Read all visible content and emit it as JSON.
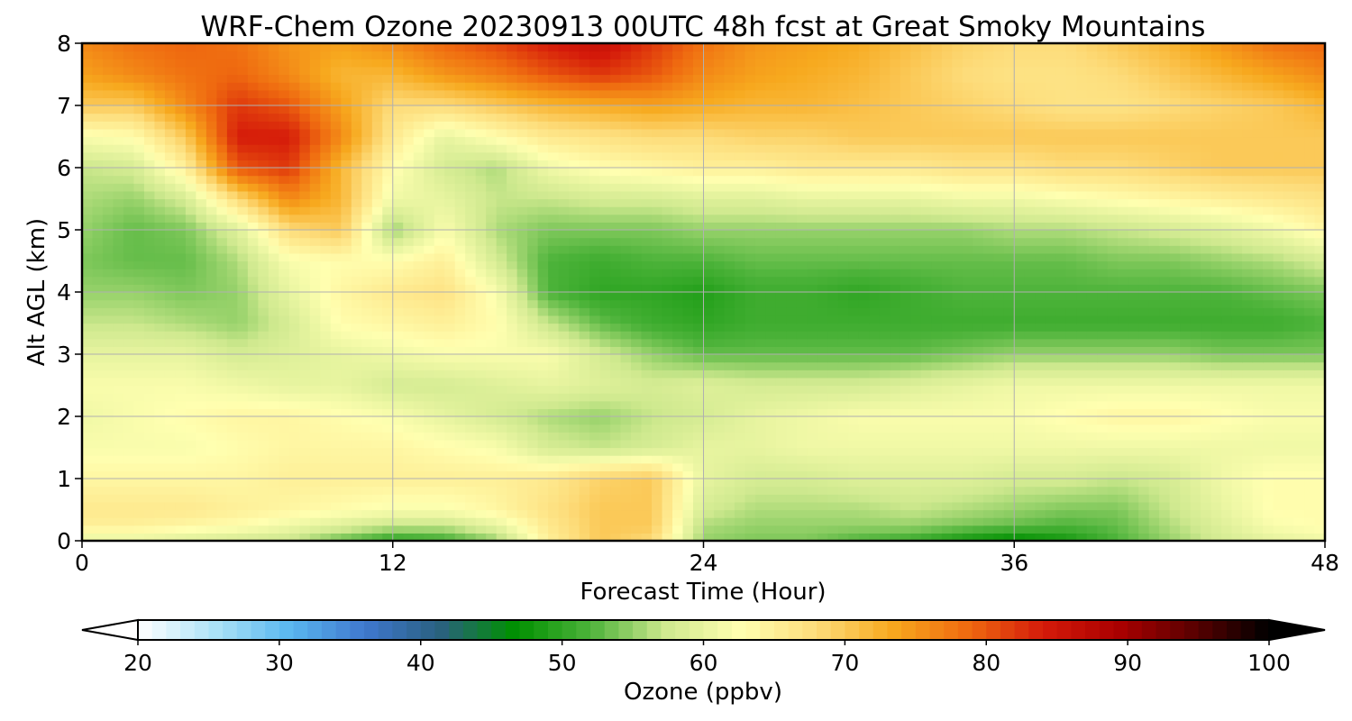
{
  "chart_data": {
    "type": "heatmap",
    "title": "WRF-Chem Ozone  20230913 00UTC 48h fcst at Great Smoky Mountains",
    "xlabel": "Forecast Time (Hour)",
    "ylabel": "Alt AGL (km)",
    "x_range": [
      0,
      48
    ],
    "y_range": [
      0,
      8
    ],
    "x_ticks": [
      0,
      12,
      24,
      36,
      48
    ],
    "y_ticks": [
      0,
      1,
      2,
      3,
      4,
      5,
      6,
      7,
      8
    ],
    "grid": true,
    "colorbar": {
      "label": "Ozone  (ppbv)",
      "range": [
        20,
        100
      ],
      "ticks": [
        20,
        30,
        40,
        50,
        60,
        70,
        80,
        90,
        100
      ],
      "extend": "both",
      "colors": [
        "#ffffff",
        "#aee3f7",
        "#5ab8f0",
        "#3f78cf",
        "#2a6080",
        "#009000",
        "#4db33a",
        "#cfe98f",
        "#ffffb0",
        "#fddc7a",
        "#f7a91e",
        "#ef6a10",
        "#d51a0a",
        "#aa0000",
        "#5a0000",
        "#000000"
      ]
    },
    "x": [
      0,
      2,
      4,
      6,
      8,
      10,
      12,
      14,
      16,
      18,
      20,
      22,
      24,
      26,
      28,
      30,
      32,
      34,
      36,
      38,
      40,
      42,
      44,
      46,
      48
    ],
    "y": [
      0,
      0.25,
      0.5,
      1,
      1.5,
      2,
      2.5,
      3,
      3.5,
      4,
      4.5,
      5,
      5.5,
      6,
      6.5,
      7,
      7.5,
      8
    ],
    "z": [
      [
        60,
        60,
        59,
        58,
        57,
        53,
        50,
        51,
        55,
        65,
        70,
        68,
        55,
        54,
        54,
        52,
        51,
        48,
        46,
        48,
        52,
        55,
        58,
        60,
        61
      ],
      [
        65,
        65,
        64,
        63,
        61,
        59,
        57,
        57,
        60,
        66,
        70,
        70,
        56,
        55,
        55,
        55,
        55,
        54,
        53,
        52,
        53,
        56,
        59,
        62,
        63
      ],
      [
        66,
        66,
        66,
        65,
        64,
        63,
        62,
        62,
        64,
        67,
        70,
        70,
        58,
        56,
        56,
        56,
        57,
        56,
        55,
        54,
        54,
        57,
        60,
        63,
        63
      ],
      [
        64,
        64,
        64,
        64,
        65,
        65,
        65,
        65,
        65,
        66,
        69,
        70,
        60,
        58,
        58,
        59,
        59,
        59,
        58,
        58,
        57,
        58,
        61,
        63,
        63
      ],
      [
        62,
        62,
        62,
        63,
        64,
        64,
        64,
        63,
        62,
        58,
        57,
        58,
        60,
        60,
        61,
        61,
        61,
        61,
        61,
        61,
        61,
        61,
        61,
        61,
        61
      ],
      [
        61,
        62,
        63,
        64,
        64,
        63,
        62,
        60,
        58,
        56,
        55,
        57,
        58,
        60,
        61,
        62,
        62,
        62,
        62,
        63,
        64,
        64,
        63,
        62,
        62
      ],
      [
        62,
        62,
        62,
        61,
        60,
        60,
        58,
        58,
        59,
        60,
        59,
        58,
        59,
        58,
        58,
        58,
        59,
        60,
        61,
        61,
        61,
        61,
        61,
        61,
        61
      ],
      [
        60,
        60,
        60,
        58,
        59,
        60,
        61,
        62,
        62,
        62,
        58,
        55,
        53,
        53,
        53,
        53,
        53,
        54,
        55,
        55,
        55,
        55,
        54,
        54,
        54
      ],
      [
        57,
        57,
        56,
        55,
        58,
        63,
        64,
        65,
        63,
        57,
        53,
        51,
        50,
        51,
        51,
        51,
        51,
        51,
        51,
        51,
        51,
        51,
        51,
        51,
        52
      ],
      [
        55,
        55,
        54,
        55,
        60,
        64,
        66,
        67,
        62,
        52,
        50,
        50,
        49,
        51,
        51,
        50,
        51,
        52,
        52,
        52,
        52,
        52,
        52,
        53,
        54
      ],
      [
        54,
        53,
        53,
        56,
        62,
        63,
        63,
        65,
        58,
        52,
        51,
        52,
        52,
        53,
        53,
        53,
        53,
        53,
        53,
        53,
        54,
        54,
        55,
        56,
        58
      ],
      [
        55,
        53,
        54,
        59,
        68,
        70,
        55,
        62,
        56,
        54,
        54,
        54,
        55,
        55,
        55,
        55,
        55,
        55,
        56,
        56,
        57,
        58,
        59,
        61,
        64
      ],
      [
        56,
        55,
        58,
        68,
        76,
        72,
        61,
        60,
        57,
        57,
        58,
        58,
        59,
        59,
        60,
        60,
        60,
        61,
        61,
        62,
        63,
        64,
        65,
        66,
        67
      ],
      [
        57,
        58,
        65,
        80,
        82,
        72,
        63,
        58,
        56,
        61,
        63,
        64,
        65,
        65,
        66,
        66,
        66,
        67,
        67,
        68,
        68,
        69,
        70,
        70,
        70
      ],
      [
        62,
        63,
        70,
        84,
        84,
        76,
        66,
        60,
        63,
        66,
        67,
        68,
        68,
        69,
        69,
        70,
        70,
        70,
        70,
        70,
        70,
        70,
        70,
        70,
        70
      ],
      [
        70,
        70,
        76,
        82,
        80,
        74,
        68,
        68,
        70,
        72,
        73,
        74,
        73,
        72,
        72,
        71,
        70,
        69,
        68,
        67,
        67,
        68,
        69,
        70,
        72
      ],
      [
        74,
        76,
        78,
        79,
        76,
        72,
        72,
        75,
        77,
        80,
        82,
        80,
        76,
        74,
        73,
        72,
        70,
        68,
        67,
        67,
        68,
        70,
        72,
        74,
        76
      ],
      [
        76,
        78,
        79,
        78,
        75,
        74,
        76,
        79,
        81,
        84,
        86,
        82,
        78,
        75,
        74,
        73,
        71,
        69,
        68,
        68,
        70,
        72,
        75,
        78,
        79
      ]
    ]
  }
}
